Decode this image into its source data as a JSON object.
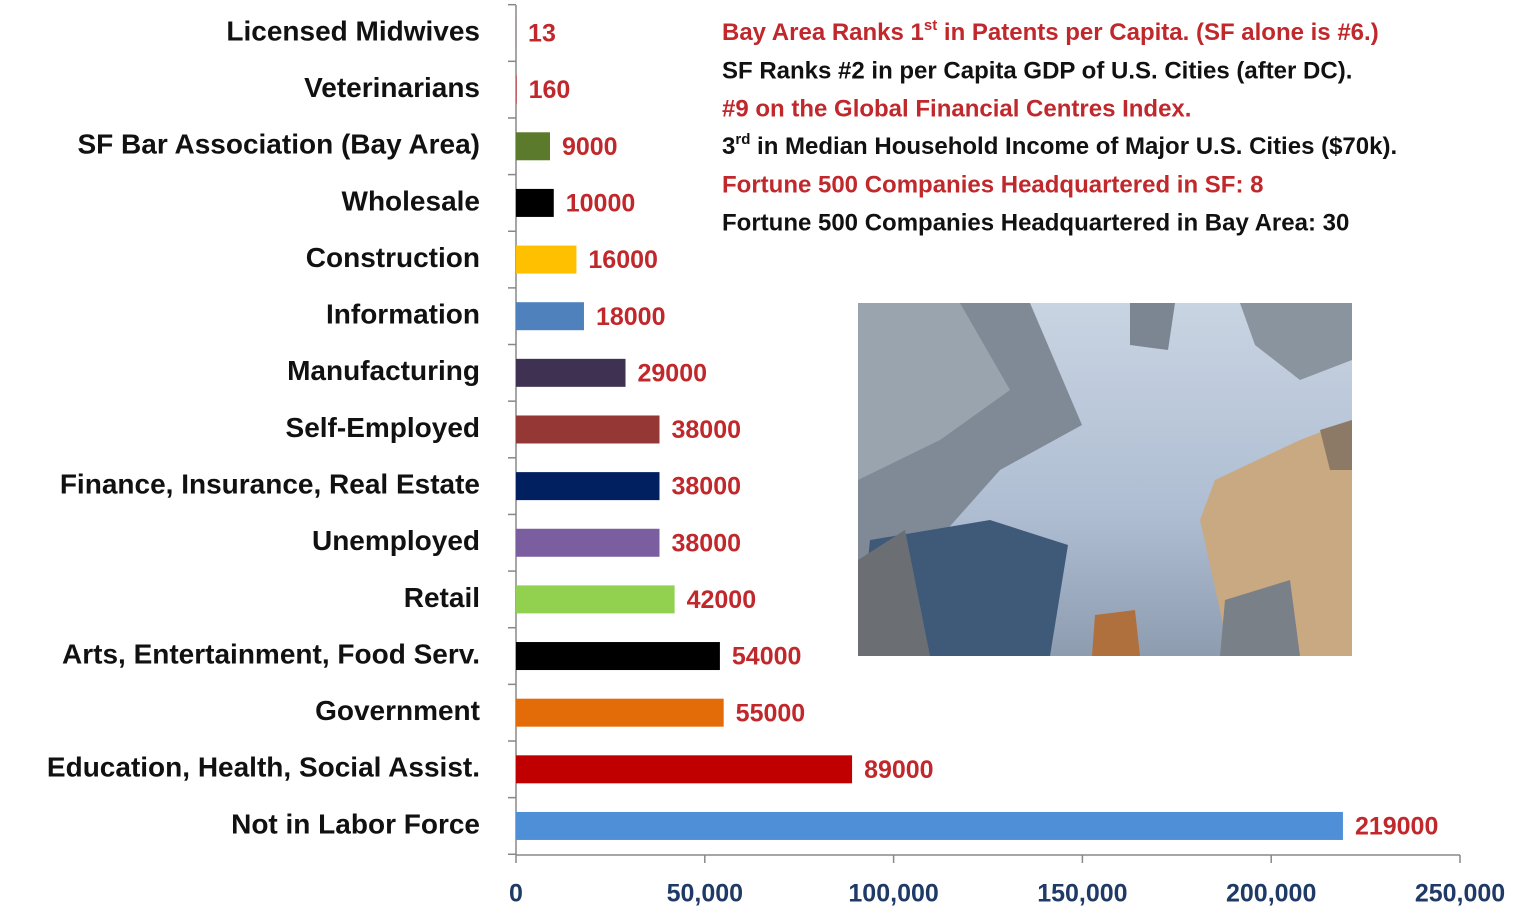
{
  "chart_data": {
    "type": "bar",
    "orientation": "horizontal",
    "categories": [
      "Licensed Midwives",
      "Veterinarians",
      "SF Bar Association (Bay Area)",
      "Wholesale",
      "Construction",
      "Information",
      "Manufacturing",
      "Self-Employed",
      "Finance, Insurance, Real Estate",
      "Unemployed",
      "Retail",
      "Arts, Entertainment, Food Serv.",
      "Government",
      "Education, Health, Social Assist.",
      "Not in Labor Force"
    ],
    "values": [
      13,
      160,
      9000,
      10000,
      16000,
      18000,
      29000,
      38000,
      38000,
      38000,
      42000,
      54000,
      55000,
      89000,
      219000
    ],
    "colors": [
      "#c0282c",
      "#c0282c",
      "#5b7a2b",
      "#000000",
      "#ffc000",
      "#4f81bd",
      "#3f3151",
      "#953735",
      "#002060",
      "#7a5ea0",
      "#92d050",
      "#000000",
      "#e36c09",
      "#c00000",
      "#4f8fd8"
    ],
    "value_label_color": "#c0282c",
    "xlim": [
      0,
      250000
    ],
    "xticks": [
      0,
      {
        "value": 50000,
        "label": "50,000"
      },
      {
        "value": 100000,
        "label": "100,000"
      },
      {
        "value": 150000,
        "label": "150,000"
      },
      {
        "value": 200000,
        "label": "200,000"
      },
      {
        "value": 250000,
        "label": "250,000"
      }
    ],
    "annotations": [
      {
        "before": "Bay Area Ranks 1",
        "sup": "st",
        "after": " in Patents per Capita. (SF alone is #6.)",
        "color": "#c0282c"
      },
      {
        "text": "SF Ranks #2 in per Capita GDP of U.S. Cities (after DC).",
        "color": "#111111"
      },
      {
        "text": "#9 on the Global Financial Centres Index.",
        "color": "#c0282c"
      },
      {
        "before": "3",
        "sup": "rd",
        "after": " in Median Household Income of Major U.S. Cities ($70k).",
        "color": "#111111"
      },
      {
        "text": "Fortune 500 Companies Headquartered in SF: 8",
        "color": "#c0282c"
      },
      {
        "text": "Fortune 500 Companies Headquartered in Bay Area: 30",
        "color": "#111111"
      }
    ]
  }
}
